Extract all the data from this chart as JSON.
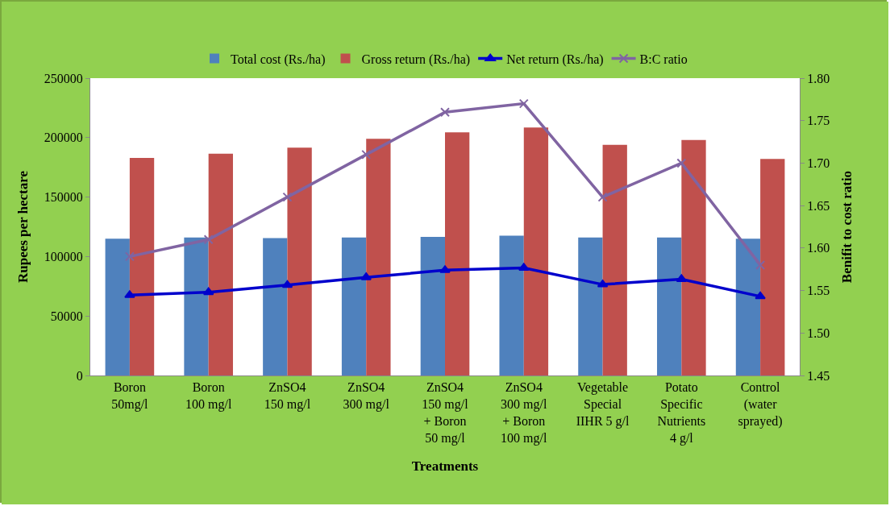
{
  "chart_data": {
    "type": "bar",
    "xlabel": "Treatments",
    "ylabel": "Rupees per hectare",
    "y2label": "Benifit to cost ratio",
    "categories": [
      "Boron\n50mg/l",
      "Boron\n100 mg/l",
      "ZnSO4\n150 mg/l",
      "ZnSO4\n300 mg/l",
      "ZnSO4\n150 mg/l\n+ Boron\n50 mg/l",
      "ZnSO4\n300 mg/l\n+ Boron\n100 mg/l",
      "Vegetable\nSpecial\nIIHR 5 g/l",
      "Potato\nSpecific\nNutrients\n4 g/l",
      "Control\n(water\nsprayed)"
    ],
    "series": [
      {
        "name": "Total cost (Rs./ha)",
        "color": "#4f81bd",
        "values": [
          115000,
          116000,
          115500,
          116000,
          116500,
          117500,
          116000,
          116000,
          115000
        ]
      },
      {
        "name": "Gross return (Rs./ha)",
        "color": "#c0504d",
        "values": [
          183000,
          186500,
          191500,
          199000,
          204500,
          208500,
          194000,
          198000,
          182000
        ]
      },
      {
        "name": "Net return (Rs./ha)",
        "type": "line",
        "color": "#0000cc",
        "marker": "triangle",
        "values": [
          67500,
          70000,
          76000,
          82500,
          88500,
          90500,
          76500,
          81000,
          66500
        ]
      },
      {
        "name": "B:C ratio",
        "type": "line",
        "color": "#8064a2",
        "marker": "cross",
        "axis": "y2",
        "values": [
          1.59,
          1.61,
          1.66,
          1.71,
          1.76,
          1.77,
          1.66,
          1.7,
          1.58
        ]
      }
    ],
    "ylim": [
      0,
      250000
    ],
    "yticks": [
      0,
      50000,
      100000,
      150000,
      200000,
      250000
    ],
    "y2lim": [
      1.45,
      1.8
    ],
    "y2ticks": [
      {
        "value": 1.45,
        "label": "1.45"
      },
      {
        "value": 1.5,
        "label": "1.50"
      },
      {
        "value": 1.55,
        "label": "1.55"
      },
      {
        "value": 1.6,
        "label": "1.60"
      },
      {
        "value": 1.65,
        "label": "1.65"
      },
      {
        "value": 1.7,
        "label": "1.70"
      },
      {
        "value": 1.75,
        "label": "1.75"
      },
      {
        "value": 1.8,
        "label": "1.80"
      }
    ],
    "grid": false,
    "legend": "top",
    "line_style": "solid"
  }
}
